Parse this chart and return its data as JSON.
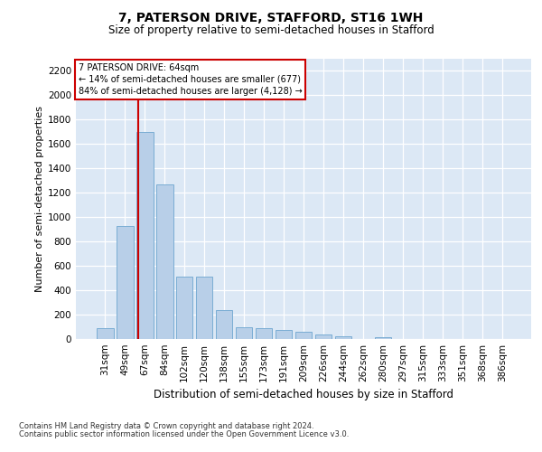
{
  "title": "7, PATERSON DRIVE, STAFFORD, ST16 1WH",
  "subtitle": "Size of property relative to semi-detached houses in Stafford",
  "xlabel": "Distribution of semi-detached houses by size in Stafford",
  "ylabel": "Number of semi-detached properties",
  "footnote1": "Contains HM Land Registry data © Crown copyright and database right 2024.",
  "footnote2": "Contains public sector information licensed under the Open Government Licence v3.0.",
  "annotation_title": "7 PATERSON DRIVE: 64sqm",
  "annotation_line1": "← 14% of semi-detached houses are smaller (677)",
  "annotation_line2": "84% of semi-detached houses are larger (4,128) →",
  "bar_color": "#b8cfe8",
  "bar_edge_color": "#7aadd4",
  "marker_color": "#cc0000",
  "bg_color": "#dce8f5",
  "grid_color": "#ffffff",
  "categories": [
    "31sqm",
    "49sqm",
    "67sqm",
    "84sqm",
    "102sqm",
    "120sqm",
    "138sqm",
    "155sqm",
    "173sqm",
    "191sqm",
    "209sqm",
    "226sqm",
    "244sqm",
    "262sqm",
    "280sqm",
    "297sqm",
    "315sqm",
    "333sqm",
    "351sqm",
    "368sqm",
    "386sqm"
  ],
  "values": [
    90,
    930,
    1700,
    1270,
    510,
    510,
    235,
    100,
    90,
    75,
    60,
    35,
    20,
    0,
    15,
    0,
    0,
    0,
    0,
    0,
    0
  ],
  "ylim": [
    0,
    2300
  ],
  "yticks": [
    0,
    200,
    400,
    600,
    800,
    1000,
    1200,
    1400,
    1600,
    1800,
    2000,
    2200
  ],
  "vline_pos": 1.65,
  "title_fontsize": 10,
  "subtitle_fontsize": 8.5,
  "ylabel_fontsize": 8,
  "xlabel_fontsize": 8.5,
  "tick_fontsize": 7.5,
  "annot_fontsize": 7,
  "footnote_fontsize": 6
}
